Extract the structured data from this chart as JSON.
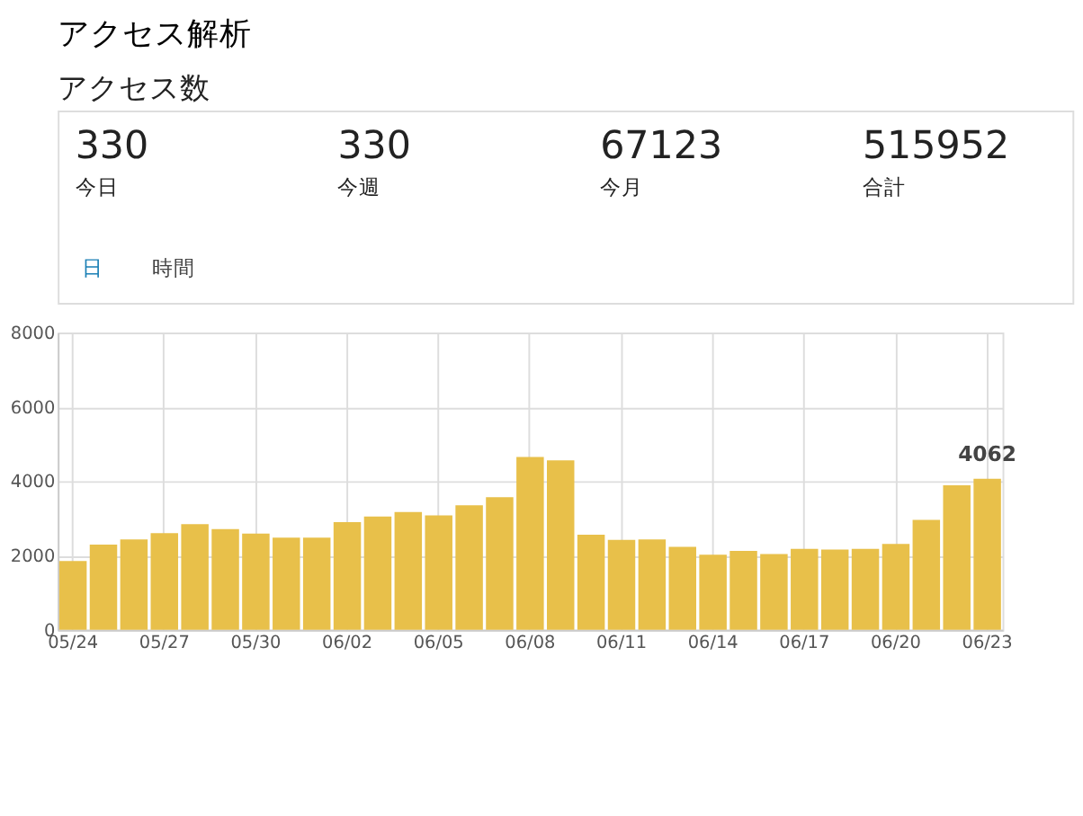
{
  "chart_data": [
    {
      "type": "other",
      "title": "アクセス解析",
      "subtitle": "アクセス数",
      "annotations": [
        "330",
        "今日",
        "330",
        "今週",
        "67123",
        "今月",
        "515952",
        "合計",
        "日",
        "時間"
      ]
    },
    {
      "type": "bar",
      "color": "#e8c04a",
      "categories": [
        "05/24",
        null,
        null,
        "05/27",
        null,
        null,
        "05/30",
        null,
        null,
        "06/02",
        null,
        null,
        "06/05",
        null,
        null,
        "06/08",
        null,
        null,
        "06/11",
        null,
        null,
        "06/14",
        null,
        null,
        "06/17",
        null,
        null,
        "06/20",
        null,
        null,
        "06/23"
      ],
      "values": [
        1850,
        2290,
        2430,
        2600,
        2840,
        2710,
        2590,
        2480,
        2480,
        2900,
        3050,
        3170,
        3080,
        3350,
        3570,
        4650,
        4560,
        2560,
        2420,
        2430,
        2230,
        2020,
        2120,
        2040,
        2180,
        2160,
        2180,
        2310,
        2960,
        3890,
        4062
      ],
      "value_labels": [
        null,
        null,
        null,
        null,
        null,
        null,
        null,
        null,
        null,
        null,
        null,
        null,
        null,
        null,
        null,
        null,
        null,
        null,
        null,
        null,
        null,
        null,
        null,
        null,
        null,
        null,
        null,
        null,
        null,
        null,
        "4062"
      ],
      "ylim": [
        0,
        8000
      ],
      "yticks": [
        0,
        2000,
        4000,
        6000,
        8000
      ],
      "grid": true
    }
  ]
}
